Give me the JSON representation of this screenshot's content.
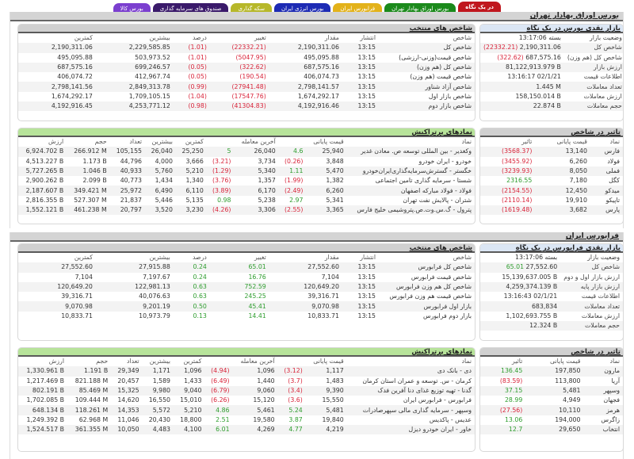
{
  "tabs": [
    {
      "label": "در یک نگاه",
      "color": "#c0171e"
    },
    {
      "label": "بورس اوراق بهادار تهران",
      "color": "#1b8a1b"
    },
    {
      "label": "فرابورس ایران",
      "color": "#e3b21a"
    },
    {
      "label": "بورس انرژی ایران",
      "color": "#1d2bb4"
    },
    {
      "label": "سکه گذاری",
      "color": "#b7b82a"
    },
    {
      "label": "صندوق های سرمایه گذاری",
      "color": "#3a1a6a"
    },
    {
      "label": "بورس کالا",
      "color": "#7b3fcf"
    }
  ],
  "tse": {
    "title": "بورس اوراق بهادار تهران",
    "glance": {
      "title": "بازار نقدی بورس در یک نگاه",
      "rows": [
        {
          "label": "وضعیت بازار",
          "value": "بسته 13:17:06",
          "change": ""
        },
        {
          "label": "شاخص کل",
          "value": "2,190,311.06",
          "change": "(22332.21)"
        },
        {
          "label": "شاخص کل (هم وزن)",
          "value": "687,575.16",
          "change": "(322.62)"
        },
        {
          "label": "ارزش بازار",
          "value": "81,122,913.979 B",
          "change": ""
        },
        {
          "label": "اطلاعات قیمت",
          "value": "13:16:17 02/1/21",
          "change": ""
        },
        {
          "label": "تعداد معاملات",
          "value": "1.445 M",
          "change": ""
        },
        {
          "label": "ارزش معاملات",
          "value": "158,150.014 B",
          "change": ""
        },
        {
          "label": "حجم معاملات",
          "value": "22.874 B",
          "change": ""
        }
      ]
    },
    "indices": {
      "title": "شاخص های منتخب",
      "headers": [
        "شاخص",
        "انتشار",
        "مقدار",
        "تغییر",
        "درصد",
        "بیشترین",
        "کمترین"
      ],
      "rows": [
        {
          "name": "شاخص کل",
          "time": "13:15",
          "value": "2,190,311.06",
          "change": "(22332.21)",
          "pct": "(1.01)",
          "high": "2,229,585.85",
          "low": "2,190,311.06",
          "dir": "neg"
        },
        {
          "name": "شاخص قیمت(وزنی-ارزشی)",
          "time": "13:15",
          "value": "495,095.88",
          "change": "(5047.95)",
          "pct": "(1.01)",
          "high": "503,973.52",
          "low": "495,095.88",
          "dir": "neg"
        },
        {
          "name": "شاخص کل (هم وزن)",
          "time": "13:15",
          "value": "687,575.16",
          "change": "(322.62)",
          "pct": "(0.05)",
          "high": "699,246.57",
          "low": "687,575.16",
          "dir": "neg"
        },
        {
          "name": "شاخص قیمت (هم وزن)",
          "time": "13:15",
          "value": "406,074.73",
          "change": "(190.54)",
          "pct": "(0.05)",
          "high": "412,967.74",
          "low": "406,074.72",
          "dir": "neg"
        },
        {
          "name": "شاخص آزاد شناور",
          "time": "13:15",
          "value": "2,798,141.57",
          "change": "(27941.48)",
          "pct": "(0.99)",
          "high": "2,849,313.78",
          "low": "2,798,141.56",
          "dir": "neg"
        },
        {
          "name": "شاخص بازار اول",
          "time": "13:15",
          "value": "1,674,292.17",
          "change": "(17547.76)",
          "pct": "(1.04)",
          "high": "1,709,105.15",
          "low": "1,674,292.17",
          "dir": "neg"
        },
        {
          "name": "شاخص بازار دوم",
          "time": "13:15",
          "value": "4,192,916.46",
          "change": "(41304.83)",
          "pct": "(0.98)",
          "high": "4,253,771.12",
          "low": "4,192,916.45",
          "dir": "neg"
        }
      ]
    },
    "impact": {
      "title": "تاثیر در شاخص",
      "headers": [
        "نماد",
        "قیمت پایانی",
        "تاثیر"
      ],
      "rows": [
        {
          "symbol": "فارس",
          "close": "13,140",
          "impact": "(3568.37)",
          "dir": "neg"
        },
        {
          "symbol": "فولاد",
          "close": "6,260",
          "impact": "(3455.92)",
          "dir": "neg"
        },
        {
          "symbol": "فملی",
          "close": "8,050",
          "impact": "(3239.93)",
          "dir": "neg"
        },
        {
          "symbol": "کگل",
          "close": "7,180",
          "impact": "2316.55",
          "dir": "pos"
        },
        {
          "symbol": "میدکو",
          "close": "12,450",
          "impact": "(2154.55)",
          "dir": "neg"
        },
        {
          "symbol": "تاپیکو",
          "close": "19,910",
          "impact": "(2110.14)",
          "dir": "neg"
        },
        {
          "symbol": "پارس",
          "close": "3,682",
          "impact": "(1619.48)",
          "dir": "neg"
        }
      ]
    },
    "active": {
      "title": "نمادهای پرتراکنش",
      "headers": [
        "نماد",
        "قیمت پایانی",
        "",
        "آخرین معامله",
        "",
        "کمترین",
        "بیشترین",
        "تعداد",
        "حجم",
        "ارزش"
      ],
      "rows": [
        {
          "name": "وکغدیر - بین المللی توسعه ص. معادن غدیر",
          "close": "25,940",
          "closeChg": "4.6",
          "closeDir": "pos",
          "last": "26,040",
          "lastChg": "5",
          "lastDir": "pos",
          "low": "25,250",
          "high": "26,040",
          "count": "105,155",
          "volume": "266.912 M",
          "value": "6,924.702 B"
        },
        {
          "name": "خودرو - ایران خودرو",
          "close": "3,848",
          "closeChg": "(0.26)",
          "closeDir": "neg",
          "last": "3,734",
          "lastChg": "(3.21)",
          "lastDir": "neg",
          "low": "3,666",
          "high": "4,000",
          "count": "44,796",
          "volume": "1.173 B",
          "value": "4,513.227 B"
        },
        {
          "name": "خگستر - گسترش‌سرمایه‌گذاری‌ایران‌خودرو",
          "close": "5,470",
          "closeChg": "1.11",
          "closeDir": "pos",
          "last": "5,340",
          "lastChg": "(1.29)",
          "lastDir": "neg",
          "low": "5,210",
          "high": "5,760",
          "count": "40,933",
          "volume": "1.046 B",
          "value": "5,727.265 B"
        },
        {
          "name": "شستا - سرمایه گذاری تامین اجتماعی",
          "close": "1,382",
          "closeChg": "(1.99)",
          "closeDir": "neg",
          "last": "1,357",
          "lastChg": "(3.76)",
          "lastDir": "neg",
          "low": "1,340",
          "high": "1,434",
          "count": "40,773",
          "volume": "2.099 B",
          "value": "2,900.262 B"
        },
        {
          "name": "فولاد - فولاد مبارکه اصفهان",
          "close": "6,260",
          "closeChg": "(2.49)",
          "closeDir": "neg",
          "last": "6,170",
          "lastChg": "(3.89)",
          "lastDir": "neg",
          "low": "6,110",
          "high": "6,490",
          "count": "25,972",
          "volume": "349.421 M",
          "value": "2,187.607 B"
        },
        {
          "name": "شتران - پالایش نفت تهران",
          "close": "5,341",
          "closeChg": "2.97",
          "closeDir": "pos",
          "last": "5,238",
          "lastChg": "0.98",
          "lastDir": "pos",
          "low": "5,135",
          "high": "5,446",
          "count": "21,837",
          "volume": "527.307 M",
          "value": "2,816.355 B"
        },
        {
          "name": "پترول - گ.س.وت.ص.پتروشیمی خلیج فارس",
          "close": "3,365",
          "closeChg": "(2.55)",
          "closeDir": "neg",
          "last": "3,306",
          "lastChg": "(4.26)",
          "lastDir": "neg",
          "low": "3,230",
          "high": "3,520",
          "count": "20,797",
          "volume": "461.238 M",
          "value": "1,552.121 B"
        }
      ]
    }
  },
  "ifb": {
    "title": "فرابورس ایران",
    "glance": {
      "title": "بازار نقدی فرابورس در یک نگاه",
      "rows": [
        {
          "label": "وضعیت بازار",
          "value": "بسته 13:17:06",
          "change": ""
        },
        {
          "label": "شاخص کل",
          "value": "27,552.60",
          "change": "65.01"
        },
        {
          "label": "ارزش بازار اول و دوم",
          "value": "15,139,637.005 B",
          "change": ""
        },
        {
          "label": "ارزش بازار پایه",
          "value": "4,259,374.139 B",
          "change": ""
        },
        {
          "label": "اطلاعات قیمت",
          "value": "13:16:43 02/1/21",
          "change": ""
        },
        {
          "label": "تعداد معاملات",
          "value": "683,834",
          "change": ""
        },
        {
          "label": "ارزش معاملات",
          "value": "1,102,693.755 B",
          "change": ""
        },
        {
          "label": "حجم معاملات",
          "value": "12.324 B",
          "change": ""
        }
      ]
    },
    "indices": {
      "title": "شاخص های منتخب",
      "headers": [
        "شاخص",
        "انتشار",
        "مقدار",
        "تغییر",
        "درصد",
        "بیشترین",
        "کمترین"
      ],
      "rows": [
        {
          "name": "شاخص کل فرابورس",
          "time": "13:15",
          "value": "27,552.60",
          "change": "65.01",
          "pct": "0.24",
          "high": "27,915.88",
          "low": "27,552.60",
          "dir": "pos"
        },
        {
          "name": "شاخص قیمت فرابورس",
          "time": "13:15",
          "value": "7,104",
          "change": "16.76",
          "pct": "0.24",
          "high": "7,197.67",
          "low": "7,104",
          "dir": "pos"
        },
        {
          "name": "شاخص کل هم وزن فرابورس",
          "time": "13:15",
          "value": "120,649.20",
          "change": "752.59",
          "pct": "0.63",
          "high": "122,981.13",
          "low": "120,649.20",
          "dir": "pos"
        },
        {
          "name": "شاخص قیمت هم وزن فرابورس",
          "time": "13:15",
          "value": "39,316.71",
          "change": "245.25",
          "pct": "0.63",
          "high": "40,076.63",
          "low": "39,316.71",
          "dir": "pos"
        },
        {
          "name": "بازار اول فرابورس",
          "time": "13:15",
          "value": "9,070.98",
          "change": "45.41",
          "pct": "0.50",
          "high": "9,201.19",
          "low": "9,070.98",
          "dir": "pos"
        },
        {
          "name": "بازار دوم فرابورس",
          "time": "13:15",
          "value": "10,833.71",
          "change": "14.41",
          "pct": "0.13",
          "high": "10,973.79",
          "low": "10,833.71",
          "dir": "pos"
        }
      ]
    },
    "impact": {
      "title": "تاثیر در شاخص",
      "headers": [
        "نماد",
        "قیمت پایانی",
        "تاثیر"
      ],
      "rows": [
        {
          "symbol": "مارون",
          "close": "197,850",
          "impact": "136.45",
          "dir": "pos"
        },
        {
          "symbol": "آریا",
          "close": "113,800",
          "impact": "(83.59)",
          "dir": "neg"
        },
        {
          "symbol": "وسپهر",
          "close": "5,481",
          "impact": "37.15",
          "dir": "pos"
        },
        {
          "symbol": "فجهان",
          "close": "4,949",
          "impact": "28.99",
          "dir": "pos"
        },
        {
          "symbol": "هرمز",
          "close": "10,110",
          "impact": "(27.56)",
          "dir": "neg"
        },
        {
          "symbol": "زاگرس",
          "close": "194,000",
          "impact": "13.06",
          "dir": "pos"
        },
        {
          "symbol": "انتخاب",
          "close": "29,650",
          "impact": "12.7",
          "dir": "pos"
        }
      ]
    },
    "active": {
      "title": "نمادهای پرتراکنش",
      "headers": [
        "نماد",
        "قیمت پایانی",
        "",
        "آخرین معامله",
        "",
        "کمترین",
        "بیشترین",
        "تعداد",
        "حجم",
        "ارزش"
      ],
      "rows": [
        {
          "name": "دی - بانک دی",
          "close": "1,117",
          "closeChg": "(3.12)",
          "closeDir": "neg",
          "last": "1,096",
          "lastChg": "(4.94)",
          "lastDir": "neg",
          "low": "1,096",
          "high": "1,171",
          "count": "29,349",
          "volume": "1.191 B",
          "value": "1,330.961 B"
        },
        {
          "name": "کرمان - س. توسعه و عمران استان کرمان",
          "close": "1,483",
          "closeChg": "(3.7)",
          "closeDir": "neg",
          "last": "1,440",
          "lastChg": "(6.49)",
          "lastDir": "neg",
          "low": "1,433",
          "high": "1,589",
          "count": "20,457",
          "volume": "821.188 M",
          "value": "1,217.469 B"
        },
        {
          "name": "گدنا - تهیه توزیع غذای دنا آفرین فدک",
          "close": "9,390",
          "closeChg": "(3.4)",
          "closeDir": "neg",
          "last": "9,060",
          "lastChg": "(6.79)",
          "lastDir": "neg",
          "low": "9,040",
          "high": "9,980",
          "count": "15,325",
          "volume": "85.469 M",
          "value": "802.191 B"
        },
        {
          "name": "فرابورس - فرابورس ایران",
          "close": "15,550",
          "closeChg": "(3.6)",
          "closeDir": "neg",
          "last": "15,120",
          "lastChg": "(6.26)",
          "lastDir": "neg",
          "low": "15,010",
          "high": "16,550",
          "count": "14,620",
          "volume": "109.444 M",
          "value": "1,702.085 B"
        },
        {
          "name": "وسپهر - سرمایه گذاری مالی سپهرصادرات",
          "close": "5,481",
          "closeChg": "5.24",
          "closeDir": "pos",
          "last": "5,461",
          "lastChg": "4.86",
          "lastDir": "pos",
          "low": "5,210",
          "high": "5,572",
          "count": "14,353",
          "volume": "118.261 M",
          "value": "648.134 B"
        },
        {
          "name": "عدیس - پاکدیس",
          "close": "19,840",
          "closeChg": "3.87",
          "closeDir": "pos",
          "last": "19,580",
          "lastChg": "2.51",
          "lastDir": "pos",
          "low": "18,800",
          "high": "20,430",
          "count": "11,046",
          "volume": "62.968 M",
          "value": "1,249.392 B"
        },
        {
          "name": "خاور - ایران خودرو دیزل",
          "close": "4,219",
          "closeChg": "4.77",
          "closeDir": "pos",
          "last": "4,269",
          "lastChg": "6.01",
          "lastDir": "pos",
          "low": "4,100",
          "high": "4,483",
          "count": "10,050",
          "volume": "361.355 M",
          "value": "1,524.517 B"
        }
      ]
    }
  }
}
